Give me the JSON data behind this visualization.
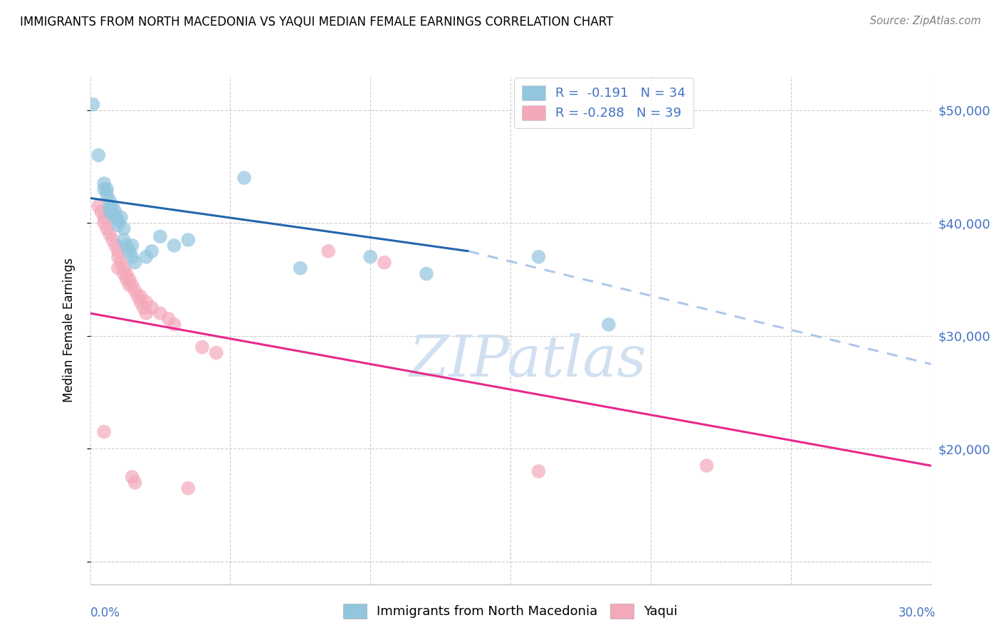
{
  "title": "IMMIGRANTS FROM NORTH MACEDONIA VS YAQUI MEDIAN FEMALE EARNINGS CORRELATION CHART",
  "source": "Source: ZipAtlas.com",
  "ylabel": "Median Female Earnings",
  "yticks": [
    10000,
    20000,
    30000,
    40000,
    50000
  ],
  "ytick_labels": [
    "",
    "$20,000",
    "$30,000",
    "$40,000",
    "$50,000"
  ],
  "xlim": [
    0.0,
    0.3
  ],
  "ylim": [
    8000,
    53000
  ],
  "right_axis_color": "#4472c4",
  "blue_color": "#92c5de",
  "pink_color": "#f4a9bb",
  "trendline_blue_color": "#2166ac",
  "trendline_pink_color": "#e7298a",
  "trendline_dashed_color": "#aec7e8",
  "watermark_color": "#d0e0f0",
  "blue_scatter": [
    [
      0.001,
      50500
    ],
    [
      0.003,
      46000
    ],
    [
      0.005,
      43500
    ],
    [
      0.005,
      43000
    ],
    [
      0.006,
      43000
    ],
    [
      0.006,
      42500
    ],
    [
      0.007,
      42000
    ],
    [
      0.007,
      41500
    ],
    [
      0.007,
      41000
    ],
    [
      0.008,
      41500
    ],
    [
      0.008,
      40800
    ],
    [
      0.009,
      41000
    ],
    [
      0.009,
      40500
    ],
    [
      0.01,
      40200
    ],
    [
      0.01,
      39800
    ],
    [
      0.011,
      40500
    ],
    [
      0.012,
      39500
    ],
    [
      0.012,
      38500
    ],
    [
      0.013,
      38000
    ],
    [
      0.014,
      37500
    ],
    [
      0.015,
      38000
    ],
    [
      0.015,
      37000
    ],
    [
      0.016,
      36500
    ],
    [
      0.02,
      37000
    ],
    [
      0.022,
      37500
    ],
    [
      0.025,
      38800
    ],
    [
      0.03,
      38000
    ],
    [
      0.035,
      38500
    ],
    [
      0.055,
      44000
    ],
    [
      0.075,
      36000
    ],
    [
      0.1,
      37000
    ],
    [
      0.12,
      35500
    ],
    [
      0.16,
      37000
    ],
    [
      0.185,
      31000
    ]
  ],
  "pink_scatter": [
    [
      0.003,
      41500
    ],
    [
      0.004,
      41000
    ],
    [
      0.005,
      40500
    ],
    [
      0.005,
      40000
    ],
    [
      0.006,
      39500
    ],
    [
      0.007,
      39000
    ],
    [
      0.008,
      38500
    ],
    [
      0.009,
      38000
    ],
    [
      0.01,
      37500
    ],
    [
      0.01,
      37000
    ],
    [
      0.011,
      36500
    ],
    [
      0.012,
      36000
    ],
    [
      0.013,
      35500
    ],
    [
      0.014,
      35000
    ],
    [
      0.015,
      34500
    ],
    [
      0.016,
      34000
    ],
    [
      0.017,
      33500
    ],
    [
      0.018,
      33000
    ],
    [
      0.019,
      32500
    ],
    [
      0.02,
      32000
    ],
    [
      0.01,
      36000
    ],
    [
      0.012,
      35500
    ],
    [
      0.013,
      35000
    ],
    [
      0.014,
      34500
    ],
    [
      0.018,
      33500
    ],
    [
      0.02,
      33000
    ],
    [
      0.022,
      32500
    ],
    [
      0.025,
      32000
    ],
    [
      0.028,
      31500
    ],
    [
      0.03,
      31000
    ],
    [
      0.04,
      29000
    ],
    [
      0.045,
      28500
    ],
    [
      0.085,
      37500
    ],
    [
      0.105,
      36500
    ],
    [
      0.16,
      18000
    ],
    [
      0.22,
      18500
    ],
    [
      0.005,
      21500
    ],
    [
      0.015,
      17500
    ],
    [
      0.016,
      17000
    ],
    [
      0.035,
      16500
    ]
  ],
  "blue_trendline_solid": [
    [
      0.0,
      42200
    ],
    [
      0.135,
      37500
    ]
  ],
  "blue_trendline_dashed": [
    [
      0.135,
      37500
    ],
    [
      0.3,
      27500
    ]
  ],
  "pink_trendline": [
    [
      0.0,
      32000
    ],
    [
      0.3,
      18500
    ]
  ]
}
